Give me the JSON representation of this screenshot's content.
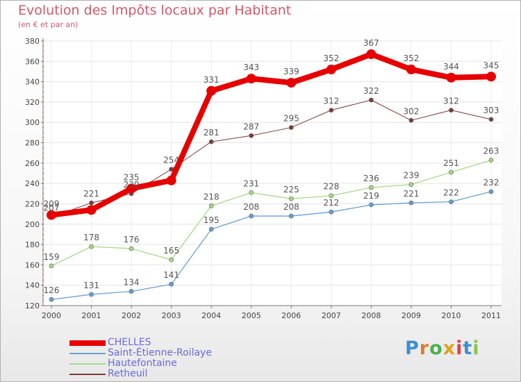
{
  "title": "Evolution des Impôts locaux par Habitant",
  "subtitle": "(en € et par an)",
  "brand": {
    "text": "Proxiti",
    "letters": [
      "P",
      "r",
      "o",
      "x",
      "i",
      "t",
      "i"
    ],
    "colors": [
      "#3f8fd0",
      "#e07b2a",
      "#4caf50",
      "#e0a020",
      "#d64545",
      "#3f8fd0",
      "#8bc34a"
    ]
  },
  "chart_data": {
    "type": "line",
    "x": [
      "2000",
      "2001",
      "2002",
      "2003",
      "2004",
      "2005",
      "2006",
      "2007",
      "2008",
      "2009",
      "2010",
      "2011"
    ],
    "ylim": [
      120,
      380
    ],
    "yticks": [
      120,
      140,
      160,
      180,
      200,
      220,
      240,
      260,
      280,
      300,
      320,
      340,
      360,
      380
    ],
    "grid": true,
    "legend_position": "bottom-left",
    "series": [
      {
        "name": "CHELLES",
        "color": "#e60000",
        "width": 8,
        "marker": 7,
        "values": [
          209,
          214,
          235,
          243,
          331,
          343,
          339,
          352,
          367,
          352,
          344,
          345
        ],
        "labels": [
          "209",
          "",
          "235",
          "",
          "331",
          "343",
          "339",
          "352",
          "367",
          "352",
          "344",
          "345"
        ]
      },
      {
        "name": "Saint-Étienne-Roilaye",
        "color": "#6a9fd0",
        "width": 1.3,
        "marker": 3,
        "values": [
          126,
          131,
          134,
          141,
          195,
          208,
          208,
          212,
          219,
          221,
          222,
          232
        ],
        "labels": [
          "126",
          "131",
          "134",
          "141",
          "195",
          "208",
          "208",
          "212",
          "219",
          "221",
          "222",
          "232"
        ]
      },
      {
        "name": "Hautefontaine",
        "color": "#a8d88a",
        "width": 1.3,
        "marker": 3,
        "values": [
          159,
          178,
          176,
          165,
          218,
          231,
          225,
          228,
          236,
          239,
          251,
          263
        ],
        "labels": [
          "159",
          "178",
          "176",
          "165",
          "218",
          "231",
          "225",
          "228",
          "236",
          "239",
          "251",
          "263"
        ]
      },
      {
        "name": "Retheuil",
        "color": "#7a3b3b",
        "width": 1,
        "marker": 3,
        "values": [
          207,
          221,
          230,
          254,
          281,
          287,
          295,
          312,
          322,
          302,
          312,
          303
        ],
        "labels": [
          "207",
          "221",
          "230",
          "254",
          "281",
          "287",
          "295",
          "312",
          "322",
          "302",
          "312",
          "303"
        ]
      }
    ]
  }
}
